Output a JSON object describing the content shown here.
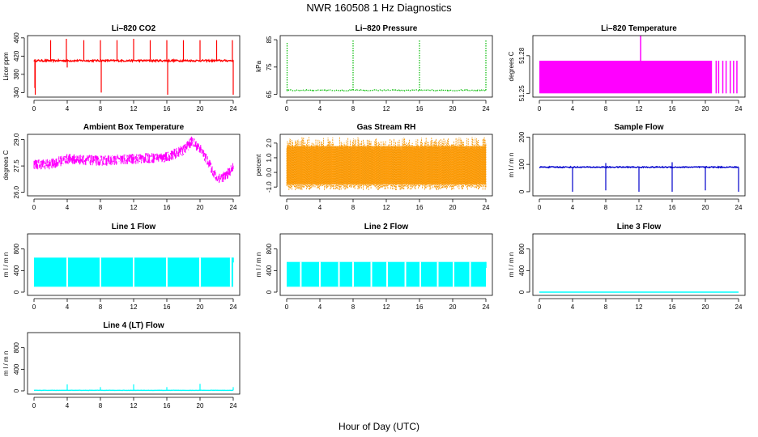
{
  "figure": {
    "title": "NWR  160508  1 Hz Diagnostics",
    "xlabel": "Hour of Day (UTC)"
  },
  "chart_data": [
    {
      "type": "line",
      "id": "co2",
      "title": "Li–820 CO2",
      "ylabel": "Licor ppm",
      "color": "#ff0000",
      "xlim": [
        0,
        24
      ],
      "xticks": [
        "0",
        "4",
        "8",
        "12",
        "16",
        "20",
        "24"
      ],
      "ylim": [
        330,
        465
      ],
      "yticks": [
        "340",
        "380",
        "420",
        "460"
      ],
      "ytick_values": [
        340,
        380,
        420,
        460
      ],
      "baseline": 410,
      "noise": 2,
      "style": "line",
      "spikes": [
        [
          0.1,
          350
        ],
        [
          0.15,
          335
        ],
        [
          2,
          455
        ],
        [
          3.9,
          458
        ],
        [
          4,
          395
        ],
        [
          6,
          455
        ],
        [
          8,
          455
        ],
        [
          8.1,
          340
        ],
        [
          10,
          455
        ],
        [
          12,
          458
        ],
        [
          14,
          455
        ],
        [
          16,
          455
        ],
        [
          16.1,
          335
        ],
        [
          18,
          455
        ],
        [
          20,
          455
        ],
        [
          22,
          455
        ],
        [
          23.9,
          455
        ],
        [
          24,
          335
        ]
      ]
    },
    {
      "type": "line",
      "id": "pressure",
      "title": "Li–820 Pressure",
      "ylabel": "kPa",
      "color": "#00bb00",
      "xlim": [
        0,
        24
      ],
      "xticks": [
        "0",
        "4",
        "8",
        "12",
        "16",
        "20",
        "24"
      ],
      "ylim": [
        64,
        86.5
      ],
      "yticks": [
        "65",
        "75",
        "85"
      ],
      "ytick_values": [
        65,
        75,
        85
      ],
      "baseline": 66.5,
      "noise": 0.2,
      "style": "dotted",
      "spikes": [
        [
          0.05,
          84
        ],
        [
          8,
          85
        ],
        [
          16,
          85
        ],
        [
          24,
          85
        ]
      ]
    },
    {
      "type": "bar",
      "id": "licor-temp",
      "title": "Li–820 Temperature",
      "ylabel": "degrees C",
      "color": "#ff00ff",
      "xlim": [
        0,
        24
      ],
      "xticks": [
        "0",
        "4",
        "8",
        "12",
        "16",
        "20",
        "24"
      ],
      "ylim": [
        51.247,
        51.296
      ],
      "yticks": [
        "51.25",
        "51.28"
      ],
      "ytick_values": [
        51.25,
        51.28
      ],
      "band": [
        51.25,
        51.276
      ],
      "band_end": 20.8,
      "tail_lines": [
        21.3,
        21.6,
        22.1,
        22.5,
        23.0,
        23.4,
        23.8
      ],
      "spikes": [
        [
          12.2,
          51.296
        ]
      ]
    },
    {
      "type": "line",
      "id": "ambient-temp",
      "title": "Ambient Box Temperature",
      "ylabel": "degrees C",
      "color": "#ff00ff",
      "xlim": [
        0,
        24
      ],
      "xticks": [
        "0",
        "4",
        "8",
        "12",
        "16",
        "20",
        "24"
      ],
      "ylim": [
        25.8,
        29.3
      ],
      "yticks": [
        "26.0",
        "27.5",
        "29.0"
      ],
      "ytick_values": [
        26.0,
        27.5,
        29.0
      ],
      "trend": [
        [
          0,
          27.6
        ],
        [
          2,
          27.6
        ],
        [
          4,
          27.9
        ],
        [
          8,
          27.8
        ],
        [
          12,
          27.9
        ],
        [
          16,
          28.0
        ],
        [
          18,
          28.4
        ],
        [
          19,
          28.9
        ],
        [
          20,
          28.5
        ],
        [
          21,
          27.7
        ],
        [
          22,
          26.8
        ],
        [
          23,
          26.9
        ],
        [
          24,
          27.4
        ]
      ],
      "noise": 0.6,
      "style": "noisy"
    },
    {
      "type": "line",
      "id": "gas-rh",
      "title": "Gas Stream RH",
      "ylabel": "percent",
      "color": "#ff9900",
      "xlim": [
        0,
        24
      ],
      "xticks": [
        "0",
        "4",
        "8",
        "12",
        "16",
        "20",
        "24"
      ],
      "ylim": [
        -1.6,
        2.6
      ],
      "yticks": [
        "-1.0",
        "0.0",
        "1.0",
        "2.0"
      ],
      "ytick_values": [
        -1,
        0,
        1,
        2
      ],
      "band_low": -0.8,
      "band_high": 1.8,
      "style": "band-dotted"
    },
    {
      "type": "line",
      "id": "sample-flow",
      "title": "Sample Flow",
      "ylabel": "m l / m n",
      "color": "#0000cc",
      "xlim": [
        0,
        24
      ],
      "xticks": [
        "0",
        "4",
        "8",
        "12",
        "16",
        "20",
        "24"
      ],
      "ylim": [
        -15,
        210
      ],
      "yticks": [
        "0",
        "100",
        "200"
      ],
      "ytick_values": [
        0,
        100,
        200
      ],
      "baseline": 90,
      "noise": 2,
      "style": "line",
      "spikes": [
        [
          4,
          0
        ],
        [
          8,
          5
        ],
        [
          8,
          105
        ],
        [
          12,
          0
        ],
        [
          16,
          0
        ],
        [
          16,
          108
        ],
        [
          20,
          5
        ],
        [
          24,
          0
        ]
      ]
    },
    {
      "type": "bar",
      "id": "line1-flow",
      "title": "Line 1 Flow",
      "ylabel": "m l / m n",
      "color": "#00ffff",
      "xlim": [
        0,
        24
      ],
      "xticks": [
        "0",
        "4",
        "8",
        "12",
        "16",
        "20",
        "24"
      ],
      "ylim": [
        -60,
        1080
      ],
      "yticks": [
        "0",
        "400",
        "800"
      ],
      "ytick_values": [
        0,
        400,
        800
      ],
      "band": [
        100,
        640
      ],
      "gaps": [
        3.9,
        7.9,
        11.9,
        15.9,
        19.9,
        23.6
      ],
      "spikes": [
        [
          24,
          550
        ]
      ]
    },
    {
      "type": "bar",
      "id": "line2-flow",
      "title": "Line 2 Flow",
      "ylabel": "m l / m n",
      "color": "#00ffff",
      "xlim": [
        0,
        24
      ],
      "xticks": [
        "0",
        "4",
        "8",
        "12",
        "16",
        "20",
        "24"
      ],
      "ylim": [
        -60,
        1080
      ],
      "yticks": [
        "0",
        "400",
        "800"
      ],
      "ytick_values": [
        0,
        400,
        800
      ],
      "band": [
        100,
        560
      ],
      "gaps": [
        1.6,
        3.9,
        6.2,
        7.9,
        10.1,
        12.0,
        14.2,
        16.0,
        18.1,
        20.0,
        22.0
      ],
      "spikes": [
        [
          24,
          450
        ]
      ]
    },
    {
      "type": "line",
      "id": "line3-flow",
      "title": "Line 3 Flow",
      "ylabel": "m l / m n",
      "color": "#00ffff",
      "xlim": [
        0,
        24
      ],
      "xticks": [
        "0",
        "4",
        "8",
        "12",
        "16",
        "20",
        "24"
      ],
      "ylim": [
        -60,
        1080
      ],
      "yticks": [
        "0",
        "400",
        "800"
      ],
      "ytick_values": [
        0,
        400,
        800
      ],
      "baseline": 0,
      "noise": 0,
      "style": "line",
      "spikes": []
    },
    {
      "type": "line",
      "id": "line4-flow",
      "title": "Line 4 (LT) Flow",
      "ylabel": "m l / m n",
      "color": "#00ffff",
      "xlim": [
        0,
        24
      ],
      "xticks": [
        "0",
        "4",
        "8",
        "12",
        "16",
        "20",
        "24"
      ],
      "ylim": [
        -60,
        1080
      ],
      "yticks": [
        "0",
        "400",
        "800"
      ],
      "ytick_values": [
        0,
        400,
        800
      ],
      "baseline": 10,
      "noise": 2,
      "style": "line",
      "spikes": [
        [
          4,
          120
        ],
        [
          8,
          70
        ],
        [
          12,
          120
        ],
        [
          16,
          70
        ],
        [
          20,
          130
        ],
        [
          24,
          70
        ]
      ]
    }
  ]
}
